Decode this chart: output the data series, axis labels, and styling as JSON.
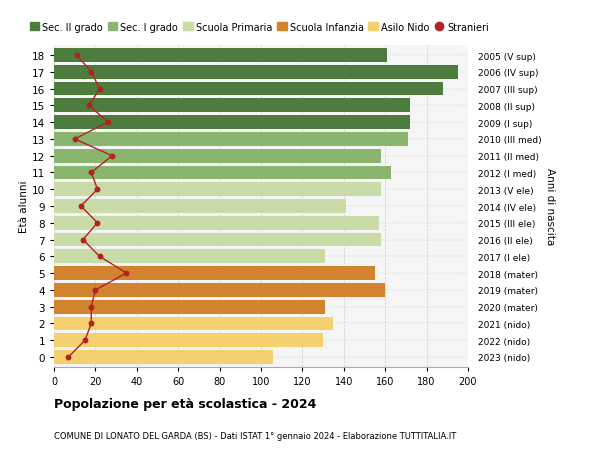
{
  "ages": [
    0,
    1,
    2,
    3,
    4,
    5,
    6,
    7,
    8,
    9,
    10,
    11,
    12,
    13,
    14,
    15,
    16,
    17,
    18
  ],
  "bar_values": [
    106,
    130,
    135,
    131,
    160,
    155,
    131,
    158,
    157,
    141,
    158,
    163,
    158,
    171,
    172,
    172,
    188,
    195,
    161
  ],
  "bar_colors": [
    "#f5d06e",
    "#f5d06e",
    "#f5d06e",
    "#d2832e",
    "#d2832e",
    "#d2832e",
    "#c9dba7",
    "#c9dba7",
    "#c9dba7",
    "#c9dba7",
    "#c9dba7",
    "#8ab56e",
    "#8ab56e",
    "#8ab56e",
    "#4e7c3f",
    "#4e7c3f",
    "#4e7c3f",
    "#4e7c3f",
    "#4e7c3f"
  ],
  "right_labels": [
    "2023 (nido)",
    "2022 (nido)",
    "2021 (nido)",
    "2020 (mater)",
    "2019 (mater)",
    "2018 (mater)",
    "2017 (I ele)",
    "2016 (II ele)",
    "2015 (III ele)",
    "2014 (IV ele)",
    "2013 (V ele)",
    "2012 (I med)",
    "2011 (II med)",
    "2010 (III med)",
    "2009 (I sup)",
    "2008 (II sup)",
    "2007 (III sup)",
    "2006 (IV sup)",
    "2005 (V sup)"
  ],
  "stranieri_values": [
    7,
    15,
    18,
    18,
    20,
    35,
    22,
    14,
    21,
    13,
    21,
    18,
    28,
    10,
    26,
    17,
    22,
    18,
    11
  ],
  "legend_labels": [
    "Sec. II grado",
    "Sec. I grado",
    "Scuola Primaria",
    "Scuola Infanzia",
    "Asilo Nido",
    "Stranieri"
  ],
  "legend_colors": [
    "#4e7c3f",
    "#8ab56e",
    "#c9dba7",
    "#d2832e",
    "#f5d06e",
    "#b22222"
  ],
  "title": "Popolazione per età scolastica - 2024",
  "subtitle": "COMUNE DI LONATO DEL GARDA (BS) - Dati ISTAT 1° gennaio 2024 - Elaborazione TUTTITALIA.IT",
  "ylabel_left": "Età alunni",
  "ylabel_right": "Anni di nascita",
  "xticks": [
    0,
    20,
    40,
    60,
    80,
    100,
    120,
    140,
    160,
    180,
    200
  ],
  "stranieri_color": "#b22222",
  "bg_color": "#ffffff",
  "plot_bg_color": "#f5f5f5"
}
